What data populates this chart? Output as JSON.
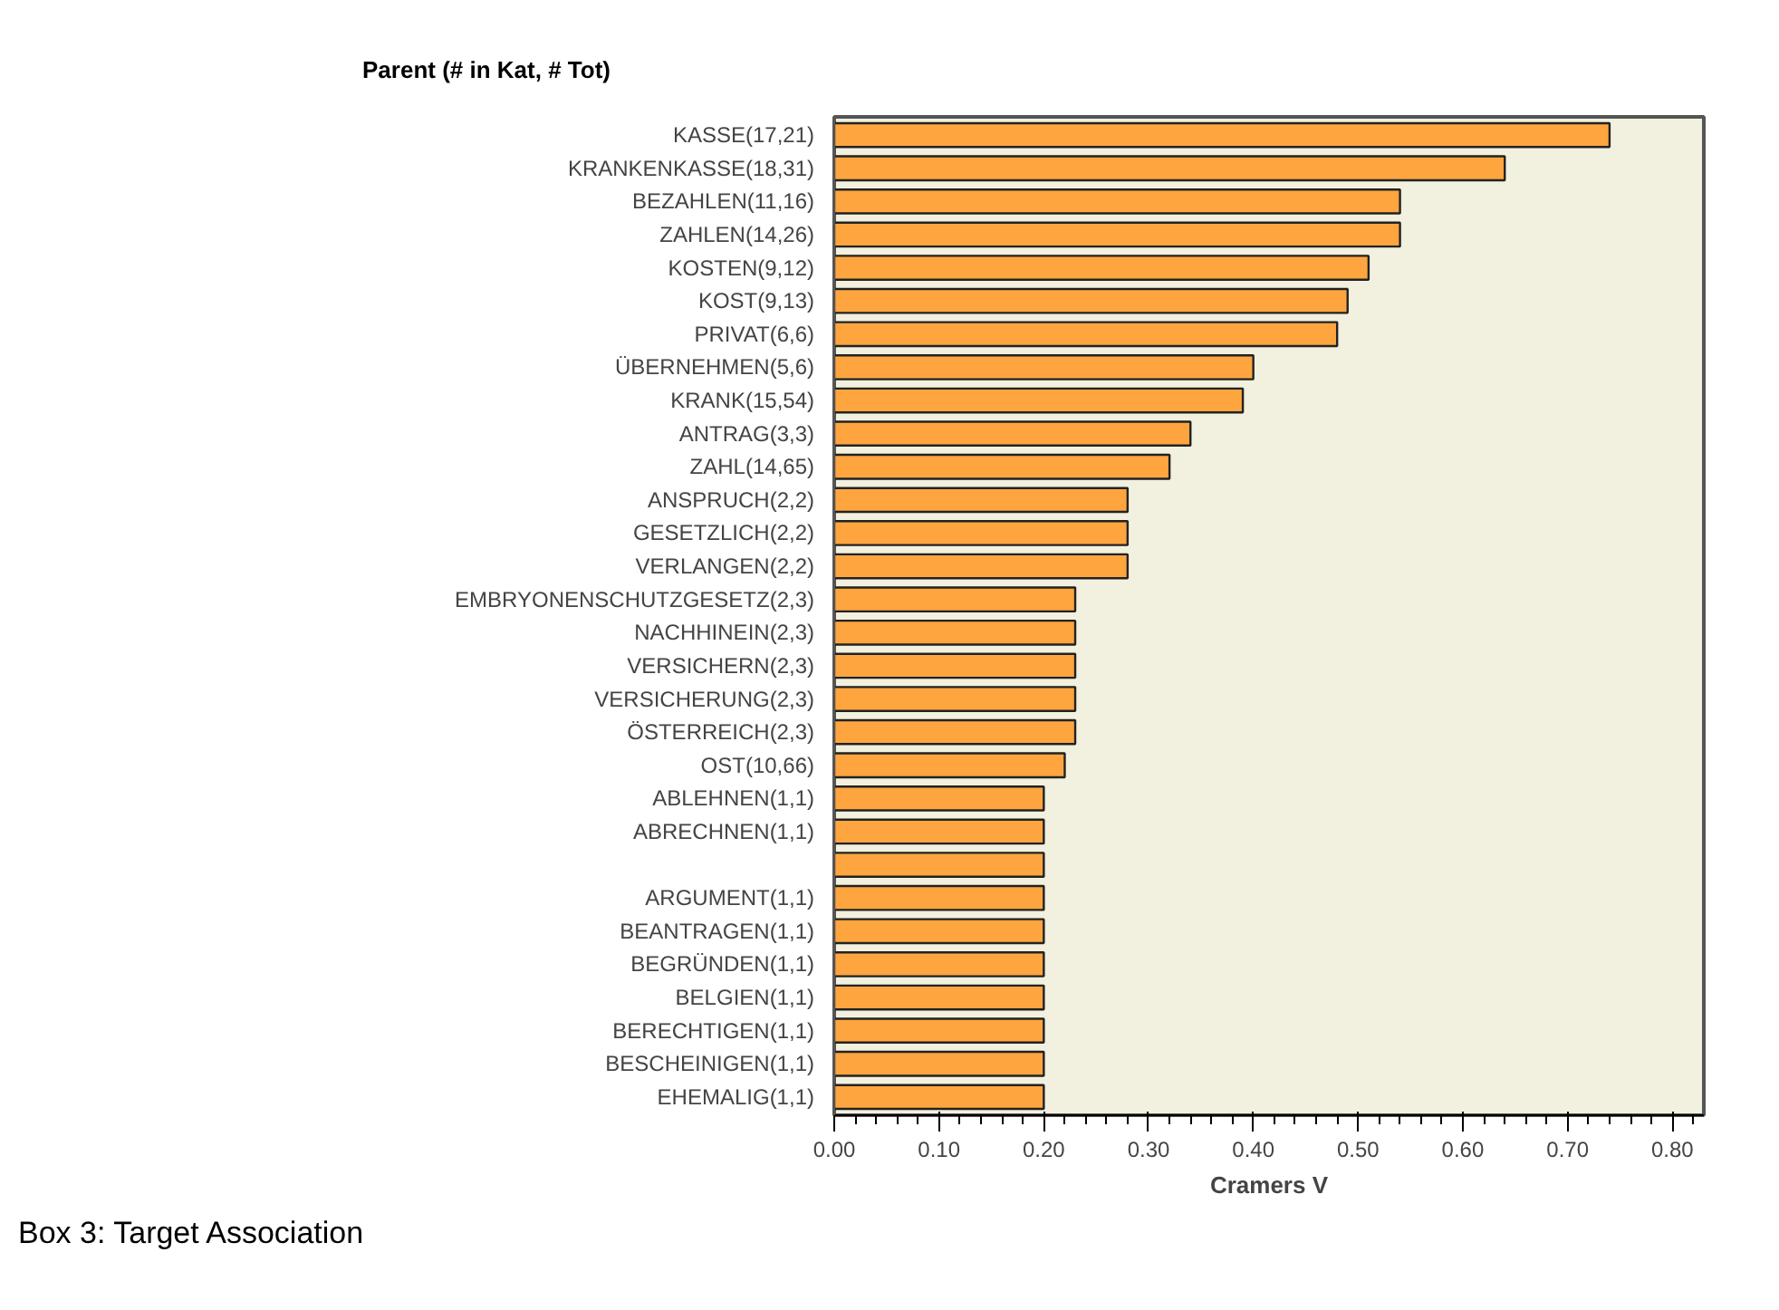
{
  "chart_data": {
    "type": "bar",
    "orientation": "horizontal",
    "title": "Parent (# in Kat, # Tot)",
    "xlabel": "Cramers V",
    "categories": [
      "KASSE(17,21)",
      "KRANKENKASSE(18,31)",
      "BEZAHLEN(11,16)",
      "ZAHLEN(14,26)",
      "KOSTEN(9,12)",
      "KOST(9,13)",
      "PRIVAT(6,6)",
      "ÜBERNEHMEN(5,6)",
      "KRANK(15,54)",
      "ANTRAG(3,3)",
      "ZAHL(14,65)",
      "ANSPRUCH(2,2)",
      "GESETZLICH(2,2)",
      "VERLANGEN(2,2)",
      "EMBRYONENSCHUTZGESETZ(2,3)",
      "NACHHINEIN(2,3)",
      "VERSICHERN(2,3)",
      "VERSICHERUNG(2,3)",
      "ÖSTERREICH(2,3)",
      "OST(10,66)",
      "ABLEHNEN(1,1)",
      "ABRECHNEN(1,1)",
      null,
      "ARGUMENT(1,1)",
      "BEANTRAGEN(1,1)",
      "BEGRÜNDEN(1,1)",
      "BELGIEN(1,1)",
      "BERECHTIGEN(1,1)",
      "BESCHEINIGEN(1,1)",
      "EHEMALIG(1,1)"
    ],
    "values": [
      0.74,
      0.64,
      0.54,
      0.54,
      0.51,
      0.49,
      0.48,
      0.4,
      0.39,
      0.34,
      0.32,
      0.28,
      0.28,
      0.28,
      0.23,
      0.23,
      0.23,
      0.23,
      0.23,
      0.22,
      0.2,
      0.2,
      0.2,
      0.2,
      0.2,
      0.2,
      0.2,
      0.2,
      0.2,
      0.2
    ],
    "color": "#ffa53f",
    "xlim": [
      0,
      0.83
    ],
    "xticks": [
      {
        "value": 0,
        "label": "0.00"
      },
      {
        "value": 0.1,
        "label": "0.10"
      },
      {
        "value": 0.2,
        "label": "0.20"
      },
      {
        "value": 0.3,
        "label": "0.30"
      },
      {
        "value": 0.4,
        "label": "0.40"
      },
      {
        "value": 0.5,
        "label": "0.50"
      },
      {
        "value": 0.6,
        "label": "0.60"
      },
      {
        "value": 0.7,
        "label": "0.70"
      },
      {
        "value": 0.8,
        "label": "0.80"
      }
    ],
    "grid": false,
    "annotations": [
      "Box 3: Target Association"
    ]
  }
}
